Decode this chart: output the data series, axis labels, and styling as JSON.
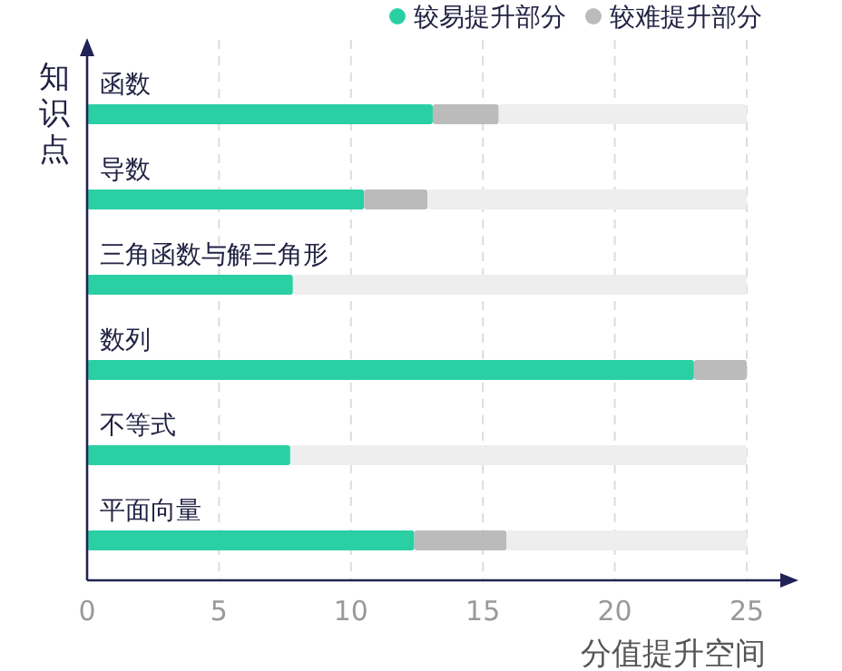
{
  "chart_data": {
    "type": "bar",
    "orientation": "horizontal",
    "stacked": true,
    "categories": [
      "函数",
      "导数",
      "三角函数与解三角形",
      "数列",
      "不等式",
      "平面向量"
    ],
    "series": [
      {
        "name": "较易提升部分",
        "color": "#2ad0a4",
        "values": [
          13.1,
          10.5,
          7.8,
          23.0,
          7.7,
          12.4
        ]
      },
      {
        "name": "较难提升部分",
        "color": "#bbbbbb",
        "values": [
          2.5,
          2.4,
          null,
          2.0,
          null,
          3.5
        ]
      },
      {
        "color": "#eeeeee",
        "values": [
          9.4,
          12.1,
          17.2,
          null,
          17.3,
          9.1
        ]
      }
    ],
    "xlim": [
      0,
      25
    ],
    "xticks": [
      0,
      5,
      10,
      15,
      20,
      25
    ],
    "xlabel": "分值提升空间",
    "ylabel": "知识点",
    "grid": "x",
    "legend": "top right"
  }
}
